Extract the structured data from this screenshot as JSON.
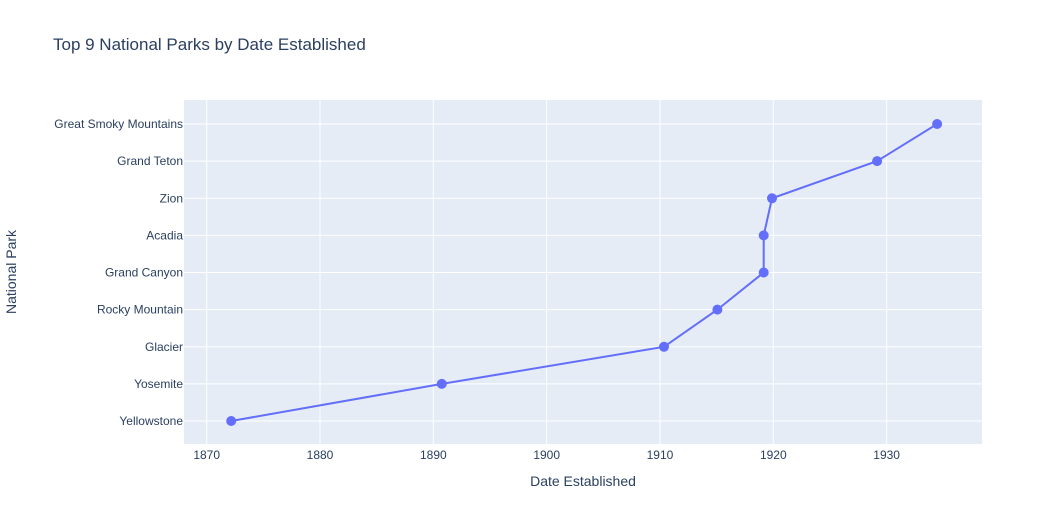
{
  "chart_data": {
    "type": "line",
    "title": "Top 9 National Parks by Date Established",
    "xlabel": "Date Established",
    "ylabel": "National Park",
    "x_axis_type": "date",
    "xlim": [
      "1868-01-01",
      "1938-06-01"
    ],
    "x_ticks": [
      "1870",
      "1880",
      "1890",
      "1900",
      "1910",
      "1920",
      "1930"
    ],
    "categories": [
      "Yellowstone",
      "Yosemite",
      "Glacier",
      "Rocky Mountain",
      "Grand Canyon",
      "Acadia",
      "Zion",
      "Grand Teton",
      "Great Smoky Mountains"
    ],
    "series": [
      {
        "x": [
          "1872-03-01",
          "1890-10-01",
          "1910-05-11",
          "1915-01-26",
          "1919-02-26",
          "1919-02-26",
          "1919-11-19",
          "1929-02-26",
          "1934-06-15"
        ],
        "y": [
          "Yellowstone",
          "Yosemite",
          "Glacier",
          "Rocky Mountain",
          "Grand Canyon",
          "Acadia",
          "Zion",
          "Grand Teton",
          "Great Smoky Mountains"
        ]
      }
    ],
    "mode": "lines+markers",
    "line_color": "#636efa",
    "plot_bg": "#e5ecf6",
    "grid": true,
    "legend": "none"
  }
}
